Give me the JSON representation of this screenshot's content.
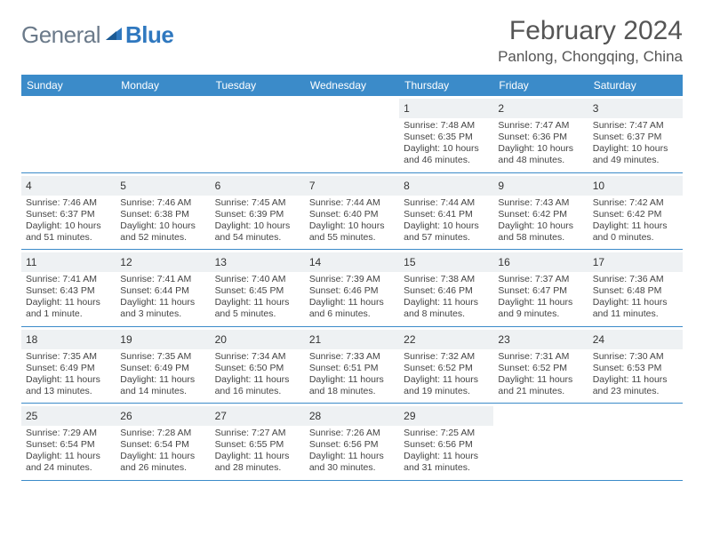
{
  "brand": {
    "part1": "General",
    "part2": "Blue"
  },
  "title": "February 2024",
  "location": "Panlong, Chongqing, China",
  "colors": {
    "header_bg": "#3b8bc9",
    "header_text": "#ffffff",
    "daynum_bg": "#eef1f3",
    "divider": "#3b8bc9",
    "brand_gray": "#6b7a8a",
    "brand_blue": "#2f78bf",
    "text": "#444444"
  },
  "typography": {
    "title_size_pt": 22,
    "location_size_pt": 13,
    "dayheader_size_pt": 9,
    "daynum_size_pt": 9,
    "detail_size_pt": 8
  },
  "day_names": [
    "Sunday",
    "Monday",
    "Tuesday",
    "Wednesday",
    "Thursday",
    "Friday",
    "Saturday"
  ],
  "first_weekday_index": 4,
  "days_in_month": 29,
  "days": {
    "1": {
      "sunrise": "7:48 AM",
      "sunset": "6:35 PM",
      "daylight": "10 hours and 46 minutes."
    },
    "2": {
      "sunrise": "7:47 AM",
      "sunset": "6:36 PM",
      "daylight": "10 hours and 48 minutes."
    },
    "3": {
      "sunrise": "7:47 AM",
      "sunset": "6:37 PM",
      "daylight": "10 hours and 49 minutes."
    },
    "4": {
      "sunrise": "7:46 AM",
      "sunset": "6:37 PM",
      "daylight": "10 hours and 51 minutes."
    },
    "5": {
      "sunrise": "7:46 AM",
      "sunset": "6:38 PM",
      "daylight": "10 hours and 52 minutes."
    },
    "6": {
      "sunrise": "7:45 AM",
      "sunset": "6:39 PM",
      "daylight": "10 hours and 54 minutes."
    },
    "7": {
      "sunrise": "7:44 AM",
      "sunset": "6:40 PM",
      "daylight": "10 hours and 55 minutes."
    },
    "8": {
      "sunrise": "7:44 AM",
      "sunset": "6:41 PM",
      "daylight": "10 hours and 57 minutes."
    },
    "9": {
      "sunrise": "7:43 AM",
      "sunset": "6:42 PM",
      "daylight": "10 hours and 58 minutes."
    },
    "10": {
      "sunrise": "7:42 AM",
      "sunset": "6:42 PM",
      "daylight": "11 hours and 0 minutes."
    },
    "11": {
      "sunrise": "7:41 AM",
      "sunset": "6:43 PM",
      "daylight": "11 hours and 1 minute."
    },
    "12": {
      "sunrise": "7:41 AM",
      "sunset": "6:44 PM",
      "daylight": "11 hours and 3 minutes."
    },
    "13": {
      "sunrise": "7:40 AM",
      "sunset": "6:45 PM",
      "daylight": "11 hours and 5 minutes."
    },
    "14": {
      "sunrise": "7:39 AM",
      "sunset": "6:46 PM",
      "daylight": "11 hours and 6 minutes."
    },
    "15": {
      "sunrise": "7:38 AM",
      "sunset": "6:46 PM",
      "daylight": "11 hours and 8 minutes."
    },
    "16": {
      "sunrise": "7:37 AM",
      "sunset": "6:47 PM",
      "daylight": "11 hours and 9 minutes."
    },
    "17": {
      "sunrise": "7:36 AM",
      "sunset": "6:48 PM",
      "daylight": "11 hours and 11 minutes."
    },
    "18": {
      "sunrise": "7:35 AM",
      "sunset": "6:49 PM",
      "daylight": "11 hours and 13 minutes."
    },
    "19": {
      "sunrise": "7:35 AM",
      "sunset": "6:49 PM",
      "daylight": "11 hours and 14 minutes."
    },
    "20": {
      "sunrise": "7:34 AM",
      "sunset": "6:50 PM",
      "daylight": "11 hours and 16 minutes."
    },
    "21": {
      "sunrise": "7:33 AM",
      "sunset": "6:51 PM",
      "daylight": "11 hours and 18 minutes."
    },
    "22": {
      "sunrise": "7:32 AM",
      "sunset": "6:52 PM",
      "daylight": "11 hours and 19 minutes."
    },
    "23": {
      "sunrise": "7:31 AM",
      "sunset": "6:52 PM",
      "daylight": "11 hours and 21 minutes."
    },
    "24": {
      "sunrise": "7:30 AM",
      "sunset": "6:53 PM",
      "daylight": "11 hours and 23 minutes."
    },
    "25": {
      "sunrise": "7:29 AM",
      "sunset": "6:54 PM",
      "daylight": "11 hours and 24 minutes."
    },
    "26": {
      "sunrise": "7:28 AM",
      "sunset": "6:54 PM",
      "daylight": "11 hours and 26 minutes."
    },
    "27": {
      "sunrise": "7:27 AM",
      "sunset": "6:55 PM",
      "daylight": "11 hours and 28 minutes."
    },
    "28": {
      "sunrise": "7:26 AM",
      "sunset": "6:56 PM",
      "daylight": "11 hours and 30 minutes."
    },
    "29": {
      "sunrise": "7:25 AM",
      "sunset": "6:56 PM",
      "daylight": "11 hours and 31 minutes."
    }
  },
  "labels": {
    "sunrise": "Sunrise: ",
    "sunset": "Sunset: ",
    "daylight": "Daylight: "
  }
}
